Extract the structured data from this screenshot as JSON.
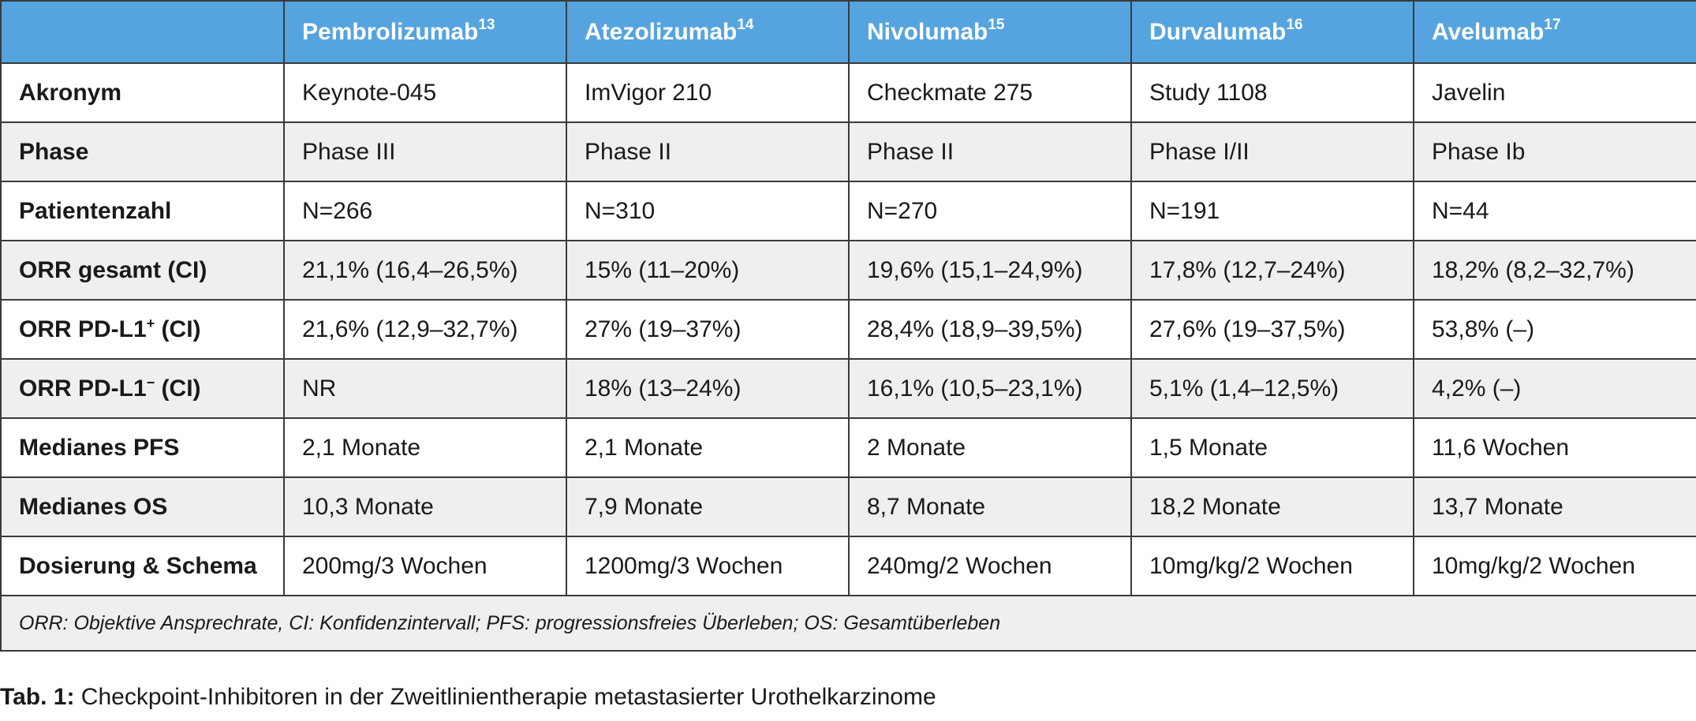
{
  "table": {
    "header": {
      "corner": "",
      "columns": [
        {
          "name": "Pembrolizumab",
          "ref": "13"
        },
        {
          "name": "Atezolizumab",
          "ref": "14"
        },
        {
          "name": "Nivolumab",
          "ref": "15"
        },
        {
          "name": "Durvalumab",
          "ref": "16"
        },
        {
          "name": "Avelumab",
          "ref": "17"
        }
      ]
    },
    "rows": [
      {
        "label": "Akronym",
        "label_sup": "",
        "label_suffix": "",
        "values": [
          "Keynote-045",
          "ImVigor 210",
          "Checkmate 275",
          "Study 1108",
          "Javelin"
        ]
      },
      {
        "label": "Phase",
        "label_sup": "",
        "label_suffix": "",
        "values": [
          "Phase III",
          "Phase II",
          "Phase II",
          "Phase I/II",
          "Phase Ib"
        ]
      },
      {
        "label": "Patientenzahl",
        "label_sup": "",
        "label_suffix": "",
        "values": [
          "N=266",
          "N=310",
          "N=270",
          "N=191",
          "N=44"
        ]
      },
      {
        "label": "ORR gesamt (CI)",
        "label_sup": "",
        "label_suffix": "",
        "values": [
          "21,1% (16,4–26,5%)",
          "15% (11–20%)",
          "19,6% (15,1–24,9%)",
          "17,8% (12,7–24%)",
          "18,2% (8,2–32,7%)"
        ]
      },
      {
        "label": "ORR PD-L1",
        "label_sup": "+",
        "label_suffix": " (CI)",
        "values": [
          "21,6% (12,9–32,7%)",
          "27% (19–37%)",
          "28,4% (18,9–39,5%)",
          "27,6% (19–37,5%)",
          "53,8% (–)"
        ]
      },
      {
        "label": "ORR PD-L1",
        "label_sup": "−",
        "label_suffix": " (CI)",
        "values": [
          "NR",
          "18% (13–24%)",
          "16,1% (10,5–23,1%)",
          "5,1% (1,4–12,5%)",
          "4,2% (–)"
        ]
      },
      {
        "label": "Medianes PFS",
        "label_sup": "",
        "label_suffix": "",
        "values": [
          "2,1 Monate",
          "2,1 Monate",
          "2 Monate",
          "1,5 Monate",
          "11,6 Wochen"
        ]
      },
      {
        "label": "Medianes OS",
        "label_sup": "",
        "label_suffix": "",
        "values": [
          "10,3 Monate",
          "7,9 Monate",
          "8,7 Monate",
          "18,2 Monate",
          "13,7 Monate"
        ]
      },
      {
        "label": "Dosierung & Schema",
        "label_sup": "",
        "label_suffix": "",
        "values": [
          "200mg/3 Wochen",
          "1200mg/3 Wochen",
          "240mg/2 Wochen",
          "10mg/kg/2 Wochen",
          "10mg/kg/2 Wochen"
        ]
      }
    ],
    "footnote": "ORR: Objektive Ansprechrate, CI: Konfidenzintervall; PFS: progressionsfreies Überleben; OS: Gesamtüberleben"
  },
  "caption": {
    "label": "Tab. 1:",
    "text": " Checkpoint-Inhibitoren in der Zweitlinientherapie metastasierter Urothelkarzinome"
  },
  "colors": {
    "header_bg": "#55a4e0",
    "header_text": "#ffffff",
    "stripe_bg": "#eeefef",
    "border": "#3a3a3a"
  }
}
